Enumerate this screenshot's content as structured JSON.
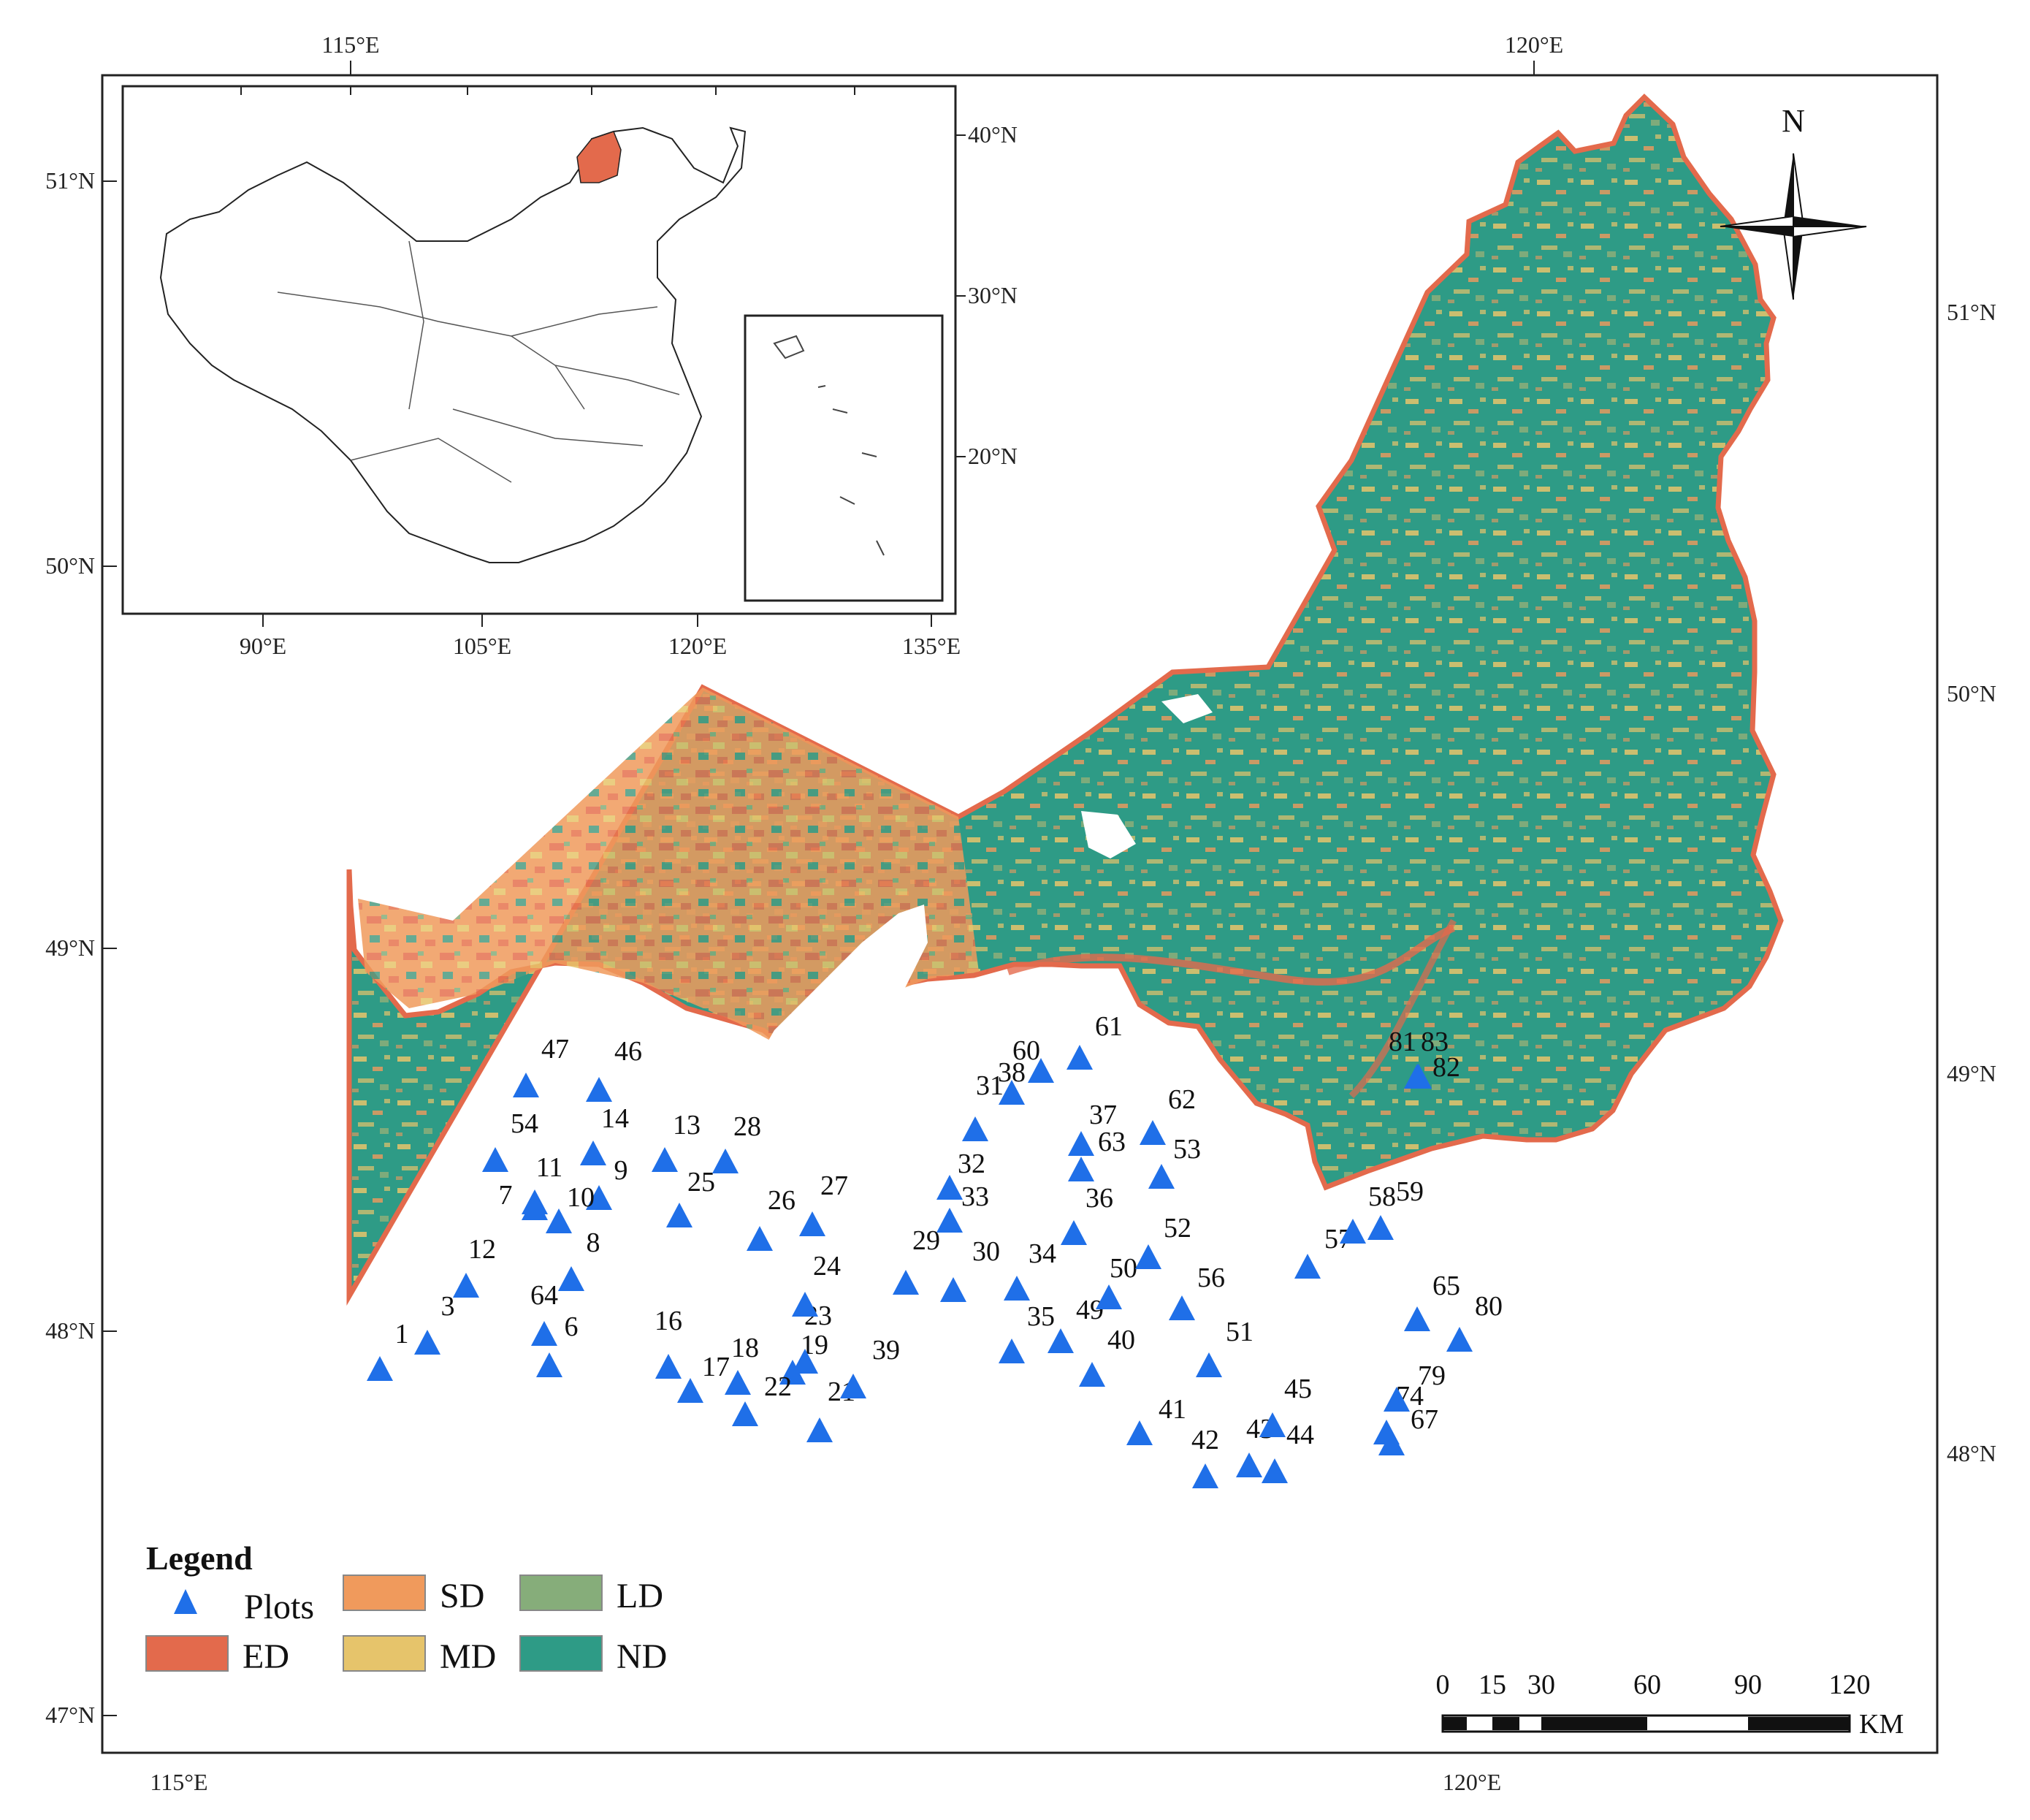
{
  "main_map": {
    "top_lon_labels": [
      {
        "text": "115°E",
        "lon": 115
      },
      {
        "text": "120°E",
        "lon": 120
      }
    ],
    "bottom_lon_labels": [
      {
        "text": "115°E",
        "lon": 115
      },
      {
        "text": "120°E",
        "lon": 120
      }
    ],
    "left_lat_labels": [
      {
        "text": "51°N",
        "lat": 51
      },
      {
        "text": "50°N",
        "lat": 50
      },
      {
        "text": "49°N",
        "lat": 49
      },
      {
        "text": "48°N",
        "lat": 48
      },
      {
        "text": "47°N",
        "lat": 47
      }
    ],
    "right_lat_labels": [
      {
        "text": "51°N",
        "lat": 51
      },
      {
        "text": "50°N",
        "lat": 50
      },
      {
        "text": "49°N",
        "lat": 49
      },
      {
        "text": "48°N",
        "lat": 48
      }
    ]
  },
  "inset": {
    "bottom_lon_labels": [
      "90°E",
      "105°E",
      "120°E",
      "135°E"
    ],
    "right_lat_labels": [
      "40°N",
      "30°N",
      "20°N"
    ]
  },
  "north_arrow": {
    "label": "N"
  },
  "legend": {
    "title": "Legend",
    "items": [
      {
        "label": "Plots",
        "symbol": "triangle",
        "color": "#1f6fe8"
      },
      {
        "label": "SD",
        "symbol": "box",
        "color": "#f09a5c"
      },
      {
        "label": "LD",
        "symbol": "box",
        "color": "#86ad7a"
      },
      {
        "label": "ED",
        "symbol": "box",
        "color": "#e36a4c"
      },
      {
        "label": "MD",
        "symbol": "box",
        "color": "#e6c46b"
      },
      {
        "label": "ND",
        "symbol": "box",
        "color": "#2e9b86"
      }
    ]
  },
  "scale_bar": {
    "labels": [
      "0",
      "15",
      "30",
      "60",
      "90",
      "120"
    ],
    "unit": "KM"
  },
  "colors": {
    "boundary": "#e36a4c",
    "nd": "#2e9b86",
    "plot": "#1f6fe8",
    "highlight_region": "#e36a4c"
  },
  "plots": [
    {
      "label": "1"
    },
    {
      "label": "3"
    },
    {
      "label": "6"
    },
    {
      "label": "7"
    },
    {
      "label": "8"
    },
    {
      "label": "9"
    },
    {
      "label": "10"
    },
    {
      "label": "11"
    },
    {
      "label": "12"
    },
    {
      "label": "13"
    },
    {
      "label": "14"
    },
    {
      "label": "16"
    },
    {
      "label": "17"
    },
    {
      "label": "18"
    },
    {
      "label": "19"
    },
    {
      "label": "21"
    },
    {
      "label": "22"
    },
    {
      "label": "23"
    },
    {
      "label": "24"
    },
    {
      "label": "25"
    },
    {
      "label": "26"
    },
    {
      "label": "27"
    },
    {
      "label": "28"
    },
    {
      "label": "29"
    },
    {
      "label": "30"
    },
    {
      "label": "31"
    },
    {
      "label": "32"
    },
    {
      "label": "33"
    },
    {
      "label": "34"
    },
    {
      "label": "35"
    },
    {
      "label": "36"
    },
    {
      "label": "37"
    },
    {
      "label": "38"
    },
    {
      "label": "39"
    },
    {
      "label": "40"
    },
    {
      "label": "41"
    },
    {
      "label": "42"
    },
    {
      "label": "43"
    },
    {
      "label": "44"
    },
    {
      "label": "45"
    },
    {
      "label": "46"
    },
    {
      "label": "47"
    },
    {
      "label": "49"
    },
    {
      "label": "50"
    },
    {
      "label": "51"
    },
    {
      "label": "52"
    },
    {
      "label": "53"
    },
    {
      "label": "54"
    },
    {
      "label": "56"
    },
    {
      "label": "57"
    },
    {
      "label": "58"
    },
    {
      "label": "59"
    },
    {
      "label": "60"
    },
    {
      "label": "61"
    },
    {
      "label": "62"
    },
    {
      "label": "63"
    },
    {
      "label": "64"
    },
    {
      "label": "65"
    },
    {
      "label": "67"
    },
    {
      "label": "74"
    },
    {
      "label": "79"
    },
    {
      "label": "80"
    },
    {
      "label": "81"
    },
    {
      "label": "82"
    },
    {
      "label": "83"
    }
  ]
}
